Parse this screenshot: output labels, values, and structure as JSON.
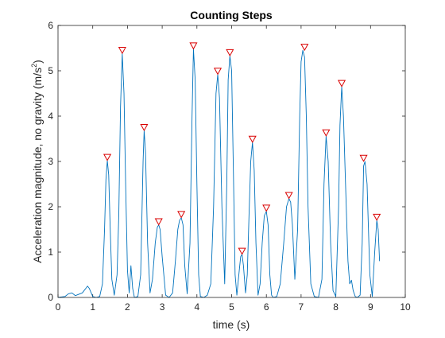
{
  "chart_data": {
    "type": "line",
    "title": "Counting Steps",
    "xlabel": "time (s)",
    "ylabel": "Acceleration magnitude, no gravity (m/s^2)",
    "ylabel_parts": {
      "main": "Acceleration magnitude, no gravity (m/s",
      "sup": "2",
      "tail": ")"
    },
    "xlim": [
      0,
      10
    ],
    "ylim": [
      0,
      6
    ],
    "xticks": [
      0,
      1,
      2,
      3,
      4,
      5,
      6,
      7,
      8,
      9,
      10
    ],
    "yticks": [
      0,
      1,
      2,
      3,
      4,
      5,
      6
    ],
    "grid": false,
    "line_color": "#0072BD",
    "marker_color": "#D90000",
    "series": [
      {
        "x": [
          0.0,
          0.2,
          0.3,
          0.4,
          0.5,
          0.7,
          0.8,
          0.85,
          0.9,
          1.0,
          1.1,
          1.2,
          1.28,
          1.34,
          1.38,
          1.42,
          1.46,
          1.5,
          1.55,
          1.62,
          1.7,
          1.75,
          1.8,
          1.85,
          1.9,
          1.95,
          2.0,
          2.05,
          2.1,
          2.15,
          2.2,
          2.3,
          2.38,
          2.45,
          2.48,
          2.52,
          2.58,
          2.65,
          2.72,
          2.8,
          2.86,
          2.9,
          2.94,
          3.0,
          3.1,
          3.2,
          3.3,
          3.38,
          3.45,
          3.5,
          3.55,
          3.6,
          3.65,
          3.72,
          3.8,
          3.86,
          3.9,
          3.95,
          4.0,
          4.05,
          4.1,
          4.2,
          4.3,
          4.4,
          4.48,
          4.55,
          4.6,
          4.65,
          4.72,
          4.8,
          4.86,
          4.9,
          4.95,
          5.0,
          5.05,
          5.1,
          5.15,
          5.22,
          5.26,
          5.3,
          5.34,
          5.4,
          5.45,
          5.5,
          5.55,
          5.6,
          5.65,
          5.7,
          5.76,
          5.82,
          5.88,
          5.94,
          6.0,
          6.05,
          6.1,
          6.15,
          6.2,
          6.3,
          6.4,
          6.5,
          6.58,
          6.65,
          6.7,
          6.75,
          6.82,
          6.9,
          6.96,
          7.0,
          7.05,
          7.1,
          7.15,
          7.2,
          7.28,
          7.38,
          7.5,
          7.6,
          7.66,
          7.72,
          7.78,
          7.85,
          7.92,
          8.0,
          8.08,
          8.12,
          8.17,
          8.22,
          8.28,
          8.35,
          8.4,
          8.45,
          8.5,
          8.56,
          8.62,
          8.7,
          8.76,
          8.8,
          8.84,
          8.9,
          8.98,
          9.05,
          9.12,
          9.18,
          9.22,
          9.26
        ],
        "y": [
          0.0,
          0.02,
          0.08,
          0.1,
          0.04,
          0.1,
          0.2,
          0.25,
          0.2,
          0.02,
          0.0,
          0.02,
          0.3,
          1.5,
          2.6,
          3.02,
          2.7,
          1.6,
          0.4,
          0.05,
          0.5,
          1.8,
          4.2,
          5.38,
          4.5,
          2.4,
          0.6,
          0.1,
          0.7,
          0.2,
          0.0,
          0.02,
          0.5,
          3.0,
          3.68,
          3.2,
          1.2,
          0.1,
          0.4,
          1.2,
          1.55,
          1.6,
          1.5,
          0.9,
          0.05,
          0.0,
          0.1,
          0.8,
          1.5,
          1.7,
          1.76,
          1.6,
          0.7,
          0.08,
          1.2,
          4.0,
          5.48,
          4.8,
          2.5,
          0.5,
          0.02,
          0.0,
          0.05,
          0.3,
          2.0,
          4.5,
          4.92,
          4.4,
          2.0,
          0.3,
          2.5,
          4.8,
          5.33,
          5.0,
          2.8,
          0.5,
          0.05,
          0.6,
          0.9,
          0.95,
          0.7,
          0.1,
          0.5,
          1.8,
          3.0,
          3.42,
          2.8,
          1.2,
          0.05,
          0.3,
          1.2,
          1.8,
          1.9,
          1.6,
          0.5,
          0.05,
          0.0,
          0.02,
          0.3,
          1.2,
          2.0,
          2.18,
          2.1,
          1.6,
          0.4,
          1.5,
          4.0,
          5.2,
          5.45,
          5.3,
          4.0,
          2.0,
          0.3,
          0.02,
          0.0,
          0.4,
          2.5,
          3.56,
          3.0,
          1.2,
          0.15,
          0.02,
          2.0,
          3.8,
          4.65,
          4.0,
          2.5,
          0.8,
          0.3,
          0.38,
          0.15,
          0.02,
          0.0,
          0.05,
          1.2,
          2.9,
          3.0,
          2.5,
          0.5,
          0.02,
          1.0,
          1.7,
          1.5,
          0.8
        ]
      }
    ],
    "peaks": {
      "x": [
        1.42,
        1.85,
        2.48,
        2.9,
        3.55,
        3.9,
        4.6,
        4.95,
        5.3,
        5.6,
        6.0,
        6.65,
        7.1,
        7.72,
        8.17,
        8.8,
        9.18
      ],
      "y": [
        3.02,
        5.38,
        3.68,
        1.6,
        1.76,
        5.48,
        4.92,
        5.33,
        0.95,
        3.42,
        1.9,
        2.18,
        5.45,
        3.56,
        4.65,
        3.0,
        1.7
      ]
    }
  }
}
